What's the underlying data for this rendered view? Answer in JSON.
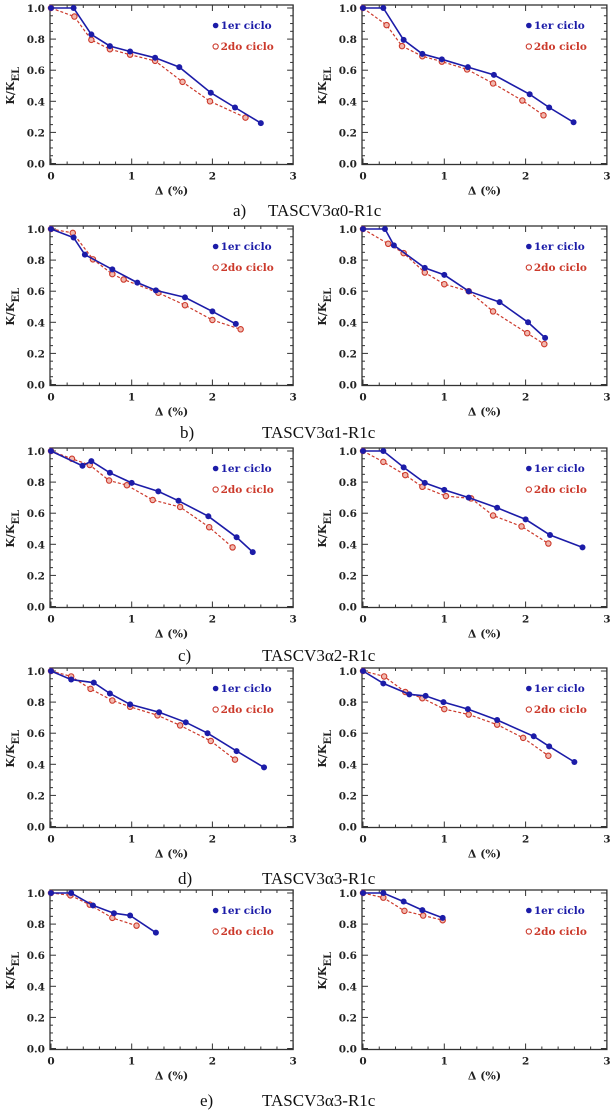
{
  "figure": {
    "rows": [
      {
        "label": "a)",
        "name": "TASCV3α0-R1c"
      },
      {
        "label": "b)",
        "name": "TASCV3α1-R1c"
      },
      {
        "label": "c)",
        "name": "TASCV3α2-R1c"
      },
      {
        "label": "d)",
        "name": "TASCV3α3-R1c"
      },
      {
        "label": "e)",
        "name": "TASCV3α3-R1c"
      }
    ],
    "colors": {
      "series1": "#1c1ca8",
      "series2": "#cc3a2c",
      "series2_fill": "#f2b8ae"
    }
  },
  "chart_data": [
    {
      "type": "line",
      "panel": "a-left",
      "xlabel": "Δ (%)",
      "ylabel": "K/K",
      "ylabel_subscript": "EL",
      "xlim": [
        0,
        3
      ],
      "ylim": [
        0,
        1
      ],
      "xticks": [
        "0",
        "1",
        "2",
        "3"
      ],
      "yticks": [
        "0.0",
        "0.2",
        "0.4",
        "0.6",
        "0.8",
        "1.0"
      ],
      "legend": "top-right",
      "series": [
        {
          "name": "1er ciclo",
          "x": [
            0,
            0.28,
            0.5,
            0.73,
            0.98,
            1.29,
            1.59,
            1.98,
            2.28,
            2.6
          ],
          "y": [
            1,
            1,
            0.83,
            0.755,
            0.72,
            0.68,
            0.62,
            0.455,
            0.36,
            0.26
          ]
        },
        {
          "name": "2do ciclo",
          "x": [
            0,
            0.29,
            0.5,
            0.73,
            0.98,
            1.29,
            1.63,
            1.97,
            2.41
          ],
          "y": [
            1,
            0.945,
            0.795,
            0.735,
            0.7,
            0.66,
            0.525,
            0.4,
            0.295
          ]
        }
      ]
    },
    {
      "type": "line",
      "panel": "a-right",
      "xlabel": "Δ (%)",
      "ylabel": "K/K",
      "ylabel_subscript": "EL",
      "xlim": [
        0,
        3
      ],
      "ylim": [
        0,
        1
      ],
      "xticks": [
        "0",
        "1",
        "2",
        "3"
      ],
      "yticks": [
        "0.0",
        "0.2",
        "0.4",
        "0.6",
        "0.8",
        "1.0"
      ],
      "legend": "top-right",
      "series": [
        {
          "name": "1er ciclo",
          "x": [
            0,
            0.25,
            0.5,
            0.73,
            0.97,
            1.29,
            1.61,
            2.05,
            2.29,
            2.59
          ],
          "y": [
            1,
            1,
            0.795,
            0.705,
            0.67,
            0.62,
            0.57,
            0.445,
            0.36,
            0.265
          ]
        },
        {
          "name": "2do ciclo",
          "x": [
            0,
            0.29,
            0.48,
            0.73,
            0.97,
            1.28,
            1.6,
            1.96,
            2.22
          ],
          "y": [
            1,
            0.89,
            0.755,
            0.69,
            0.655,
            0.605,
            0.515,
            0.405,
            0.31
          ]
        }
      ]
    },
    {
      "type": "line",
      "panel": "b-left",
      "xlabel": "Δ (%)",
      "ylabel": "K/K",
      "ylabel_subscript": "EL",
      "xlim": [
        0,
        3
      ],
      "ylim": [
        0,
        1
      ],
      "xticks": [
        "0",
        "1",
        "2",
        "3"
      ],
      "yticks": [
        "0.0",
        "0.2",
        "0.4",
        "0.6",
        "0.8",
        "1.0"
      ],
      "legend": "top-right",
      "series": [
        {
          "name": "1er ciclo",
          "x": [
            0,
            0.28,
            0.42,
            0.76,
            1.07,
            1.3,
            1.66,
            2.0,
            2.29
          ],
          "y": [
            1,
            0.945,
            0.835,
            0.74,
            0.655,
            0.605,
            0.56,
            0.47,
            0.39
          ]
        },
        {
          "name": "2do ciclo",
          "x": [
            0,
            0.27,
            0.52,
            0.76,
            0.9,
            1.33,
            1.66,
            2.0,
            2.35
          ],
          "y": [
            1,
            0.975,
            0.805,
            0.71,
            0.675,
            0.59,
            0.51,
            0.415,
            0.355
          ]
        }
      ]
    },
    {
      "type": "line",
      "panel": "b-right",
      "xlabel": "Δ (%)",
      "ylabel": "K/K",
      "ylabel_subscript": "EL",
      "xlim": [
        0,
        3
      ],
      "ylim": [
        0,
        1
      ],
      "xticks": [
        "0",
        "1",
        "2",
        "3"
      ],
      "yticks": [
        "0.0",
        "0.2",
        "0.4",
        "0.6",
        "0.8",
        "1.0"
      ],
      "legend": "top-right",
      "series": [
        {
          "name": "1er ciclo",
          "x": [
            0,
            0.27,
            0.38,
            0.76,
            1.0,
            1.3,
            1.68,
            2.03,
            2.24
          ],
          "y": [
            1,
            1,
            0.895,
            0.75,
            0.705,
            0.6,
            0.53,
            0.4,
            0.3
          ]
        },
        {
          "name": "2do ciclo",
          "x": [
            0,
            0.31,
            0.5,
            0.76,
            1.0,
            1.3,
            1.6,
            2.02,
            2.23
          ],
          "y": [
            1,
            0.905,
            0.845,
            0.72,
            0.645,
            0.6,
            0.47,
            0.33,
            0.26
          ]
        }
      ]
    },
    {
      "type": "line",
      "panel": "c-left",
      "xlabel": "Δ (%)",
      "ylabel": "K/K",
      "ylabel_subscript": "EL",
      "xlim": [
        0,
        3
      ],
      "ylim": [
        0,
        1
      ],
      "xticks": [
        "0",
        "1",
        "2",
        "3"
      ],
      "yticks": [
        "0.0",
        "0.2",
        "0.4",
        "0.6",
        "0.8",
        "1.0"
      ],
      "legend": "top-right",
      "series": [
        {
          "name": "1er ciclo",
          "x": [
            0,
            0.39,
            0.5,
            0.73,
            1.0,
            1.33,
            1.58,
            1.95,
            2.3,
            2.5
          ],
          "y": [
            1,
            0.905,
            0.935,
            0.86,
            0.795,
            0.74,
            0.68,
            0.58,
            0.445,
            0.35
          ]
        },
        {
          "name": "2do ciclo",
          "x": [
            0,
            0.26,
            0.48,
            0.72,
            0.94,
            1.26,
            1.6,
            1.96,
            2.25
          ],
          "y": [
            1,
            0.95,
            0.91,
            0.81,
            0.78,
            0.685,
            0.64,
            0.51,
            0.38
          ]
        }
      ]
    },
    {
      "type": "line",
      "panel": "c-right",
      "xlabel": "Δ (%)",
      "ylabel": "K/K",
      "ylabel_subscript": "EL",
      "xlim": [
        0,
        3
      ],
      "ylim": [
        0,
        1
      ],
      "xticks": [
        "0",
        "1",
        "2",
        "3"
      ],
      "yticks": [
        "0.0",
        "0.2",
        "0.4",
        "0.6",
        "0.8",
        "1.0"
      ],
      "legend": "top-right",
      "series": [
        {
          "name": "1er ciclo",
          "x": [
            0,
            0.25,
            0.5,
            0.76,
            1.0,
            1.3,
            1.65,
            2.0,
            2.3,
            2.7
          ],
          "y": [
            1,
            1,
            0.895,
            0.795,
            0.75,
            0.7,
            0.635,
            0.56,
            0.46,
            0.38
          ]
        },
        {
          "name": "2do ciclo",
          "x": [
            0,
            0.25,
            0.52,
            0.73,
            1.02,
            1.33,
            1.6,
            1.95,
            2.28
          ],
          "y": [
            1,
            0.93,
            0.845,
            0.77,
            0.71,
            0.695,
            0.585,
            0.515,
            0.405
          ]
        }
      ]
    },
    {
      "type": "line",
      "panel": "d-left",
      "xlabel": "Δ (%)",
      "ylabel": "K/K",
      "ylabel_subscript": "EL",
      "xlim": [
        0,
        3
      ],
      "ylim": [
        0,
        1
      ],
      "xticks": [
        "0",
        "1",
        "2",
        "3"
      ],
      "yticks": [
        "0.0",
        "0.2",
        "0.4",
        "0.6",
        "0.8",
        "1.0"
      ],
      "legend": "top-right",
      "series": [
        {
          "name": "1er ciclo",
          "x": [
            0,
            0.25,
            0.53,
            0.73,
            0.98,
            1.34,
            1.67,
            1.94,
            2.3,
            2.64
          ],
          "y": [
            1,
            0.945,
            0.925,
            0.855,
            0.785,
            0.735,
            0.67,
            0.6,
            0.485,
            0.38
          ]
        },
        {
          "name": "2do ciclo",
          "x": [
            0,
            0.25,
            0.49,
            0.76,
            0.98,
            1.32,
            1.6,
            1.98,
            2.28
          ],
          "y": [
            1,
            0.965,
            0.885,
            0.81,
            0.77,
            0.715,
            0.65,
            0.55,
            0.43
          ]
        }
      ]
    },
    {
      "type": "line",
      "panel": "d-right",
      "xlabel": "Δ (%)",
      "ylabel": "K/K",
      "ylabel_subscript": "EL",
      "xlim": [
        0,
        3
      ],
      "ylim": [
        0,
        1
      ],
      "xticks": [
        "0",
        "1",
        "2",
        "3"
      ],
      "yticks": [
        "0.0",
        "0.2",
        "0.4",
        "0.6",
        "0.8",
        "1.0"
      ],
      "legend": "top-right",
      "series": [
        {
          "name": "1er ciclo",
          "x": [
            0,
            0.25,
            0.57,
            0.77,
            0.99,
            1.29,
            1.65,
            2.1,
            2.29,
            2.6
          ],
          "y": [
            1,
            0.92,
            0.85,
            0.84,
            0.8,
            0.755,
            0.685,
            0.58,
            0.515,
            0.415
          ]
        },
        {
          "name": "2do ciclo",
          "x": [
            0,
            0.26,
            0.52,
            0.73,
            1.0,
            1.3,
            1.65,
            1.97,
            2.28
          ],
          "y": [
            1,
            0.965,
            0.865,
            0.825,
            0.755,
            0.72,
            0.655,
            0.57,
            0.455
          ]
        }
      ]
    },
    {
      "type": "line",
      "panel": "e-left",
      "xlabel": "Δ (%)",
      "ylabel": "K/K",
      "ylabel_subscript": "EL",
      "xlim": [
        0,
        3
      ],
      "ylim": [
        0,
        1
      ],
      "xticks": [
        "0",
        "1",
        "2",
        "3"
      ],
      "yticks": [
        "0.0",
        "0.2",
        "0.4",
        "0.6",
        "0.8",
        "1.0"
      ],
      "legend": "top-right",
      "series": [
        {
          "name": "1er ciclo",
          "x": [
            0,
            0.25,
            0.52,
            0.78,
            0.98,
            1.3
          ],
          "y": [
            1,
            1,
            0.92,
            0.87,
            0.855,
            0.745
          ]
        },
        {
          "name": "2do ciclo",
          "x": [
            0,
            0.24,
            0.48,
            0.76,
            1.06
          ],
          "y": [
            1,
            0.985,
            0.925,
            0.84,
            0.79
          ]
        }
      ]
    },
    {
      "type": "line",
      "panel": "e-right",
      "xlabel": "Δ (%)",
      "ylabel": "K/K",
      "ylabel_subscript": "EL",
      "xlim": [
        0,
        3
      ],
      "ylim": [
        0,
        1
      ],
      "xticks": [
        "0",
        "1",
        "2",
        "3"
      ],
      "yticks": [
        "0.0",
        "0.2",
        "0.4",
        "0.6",
        "0.8",
        "1.0"
      ],
      "legend": "top-right",
      "series": [
        {
          "name": "1er ciclo",
          "x": [
            0,
            0.25,
            0.5,
            0.73,
            0.98
          ],
          "y": [
            1,
            1,
            0.945,
            0.89,
            0.84
          ]
        },
        {
          "name": "2do ciclo",
          "x": [
            0,
            0.25,
            0.51,
            0.74,
            0.98
          ],
          "y": [
            1,
            0.97,
            0.885,
            0.855,
            0.825
          ]
        }
      ]
    }
  ]
}
